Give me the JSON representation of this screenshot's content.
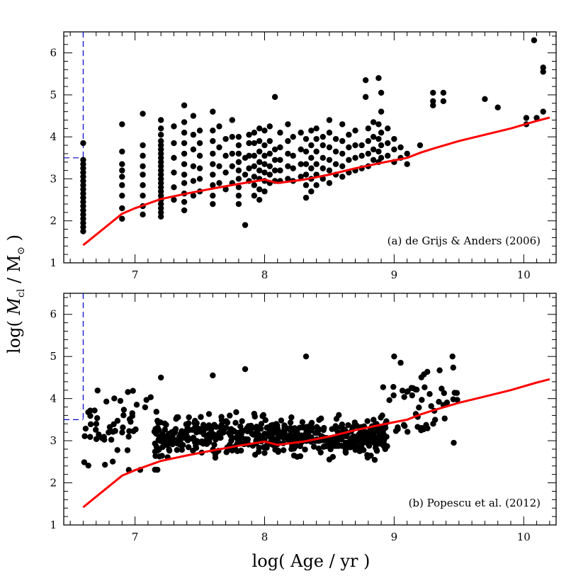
{
  "figure": {
    "ylabel_prefix": "log( ",
    "ylabel_var": "M",
    "ylabel_sub": "cl",
    "ylabel_mid": " / M",
    "ylabel_sun": "⊙",
    "ylabel_suffix": " )",
    "xlabel": "log( Age / yr )"
  },
  "chart_data": [
    {
      "type": "scatter",
      "annotation": "(a) de Grijs & Anders (2006)",
      "xlim": [
        6.45,
        10.25
      ],
      "ylim": [
        1,
        6.5
      ],
      "x_ticks": [
        7,
        8,
        9,
        10
      ],
      "y_ticks": [
        1,
        2,
        3,
        4,
        5,
        6
      ],
      "colors": {
        "points": "#000000",
        "limit_line": "#ff0000",
        "completeness": "#0000cc"
      },
      "limit_line": {
        "x": [
          6.6,
          6.9,
          7.0,
          7.2,
          7.4,
          7.6,
          7.8,
          8.0,
          8.1,
          8.3,
          8.5,
          8.7,
          8.9,
          9.1,
          9.2,
          9.3,
          9.5,
          9.7,
          9.9,
          10.1,
          10.2
        ],
        "y": [
          1.42,
          2.17,
          2.3,
          2.52,
          2.65,
          2.77,
          2.88,
          2.98,
          2.9,
          2.98,
          3.1,
          3.25,
          3.38,
          3.5,
          3.62,
          3.72,
          3.9,
          4.05,
          4.2,
          4.38,
          4.46
        ]
      },
      "completeness_limit": {
        "x": 6.6,
        "y": 3.5
      },
      "points": [
        [
          6.6,
          1.75
        ],
        [
          6.6,
          1.85
        ],
        [
          6.6,
          1.95
        ],
        [
          6.6,
          2.05
        ],
        [
          6.6,
          2.15
        ],
        [
          6.6,
          2.25
        ],
        [
          6.6,
          2.35
        ],
        [
          6.6,
          2.45
        ],
        [
          6.6,
          2.55
        ],
        [
          6.6,
          2.65
        ],
        [
          6.6,
          2.75
        ],
        [
          6.6,
          2.85
        ],
        [
          6.6,
          2.95
        ],
        [
          6.6,
          3.05
        ],
        [
          6.6,
          3.15
        ],
        [
          6.6,
          3.25
        ],
        [
          6.6,
          3.35
        ],
        [
          6.6,
          3.45
        ],
        [
          6.6,
          3.85
        ],
        [
          6.9,
          2.05
        ],
        [
          6.9,
          2.3
        ],
        [
          6.9,
          2.6
        ],
        [
          6.9,
          2.85
        ],
        [
          6.9,
          3.05
        ],
        [
          6.9,
          3.2
        ],
        [
          6.9,
          3.35
        ],
        [
          6.9,
          3.65
        ],
        [
          6.9,
          4.3
        ],
        [
          7.06,
          2.15
        ],
        [
          7.06,
          2.35
        ],
        [
          7.06,
          2.6
        ],
        [
          7.06,
          2.85
        ],
        [
          7.06,
          3.1
        ],
        [
          7.06,
          3.3
        ],
        [
          7.06,
          3.55
        ],
        [
          7.06,
          3.8
        ],
        [
          7.06,
          4.55
        ],
        [
          7.2,
          2.1
        ],
        [
          7.2,
          2.2
        ],
        [
          7.2,
          2.3
        ],
        [
          7.2,
          2.4
        ],
        [
          7.2,
          2.5
        ],
        [
          7.2,
          2.6
        ],
        [
          7.2,
          2.7
        ],
        [
          7.2,
          2.8
        ],
        [
          7.2,
          2.9
        ],
        [
          7.2,
          3.0
        ],
        [
          7.2,
          3.1
        ],
        [
          7.2,
          3.2
        ],
        [
          7.2,
          3.3
        ],
        [
          7.2,
          3.4
        ],
        [
          7.2,
          3.5
        ],
        [
          7.2,
          3.6
        ],
        [
          7.2,
          3.7
        ],
        [
          7.2,
          3.8
        ],
        [
          7.2,
          3.9
        ],
        [
          7.2,
          4.05
        ],
        [
          7.2,
          4.2
        ],
        [
          7.2,
          4.4
        ],
        [
          7.3,
          2.5
        ],
        [
          7.3,
          2.8
        ],
        [
          7.3,
          3.15
        ],
        [
          7.3,
          3.5
        ],
        [
          7.3,
          3.85
        ],
        [
          7.3,
          4.25
        ],
        [
          7.38,
          2.25
        ],
        [
          7.38,
          2.45
        ],
        [
          7.38,
          2.65
        ],
        [
          7.38,
          2.9
        ],
        [
          7.38,
          3.1
        ],
        [
          7.38,
          3.35
        ],
        [
          7.38,
          3.6
        ],
        [
          7.38,
          3.85
        ],
        [
          7.38,
          4.1
        ],
        [
          7.38,
          4.35
        ],
        [
          7.38,
          4.75
        ],
        [
          7.45,
          2.6
        ],
        [
          7.45,
          2.95
        ],
        [
          7.45,
          3.3
        ],
        [
          7.45,
          3.7
        ],
        [
          7.45,
          4.05
        ],
        [
          7.45,
          4.5
        ],
        [
          7.5,
          2.7
        ],
        [
          7.5,
          3.0
        ],
        [
          7.5,
          3.25
        ],
        [
          7.5,
          3.55
        ],
        [
          7.5,
          3.85
        ],
        [
          7.5,
          4.15
        ],
        [
          7.6,
          2.4
        ],
        [
          7.6,
          2.6
        ],
        [
          7.6,
          2.85
        ],
        [
          7.6,
          3.1
        ],
        [
          7.6,
          3.35
        ],
        [
          7.6,
          3.6
        ],
        [
          7.6,
          3.9
        ],
        [
          7.6,
          4.15
        ],
        [
          7.6,
          4.6
        ],
        [
          7.65,
          2.9
        ],
        [
          7.65,
          3.3
        ],
        [
          7.65,
          3.75
        ],
        [
          7.65,
          4.25
        ],
        [
          7.7,
          2.75
        ],
        [
          7.7,
          3.15
        ],
        [
          7.7,
          3.55
        ],
        [
          7.7,
          3.95
        ],
        [
          7.75,
          2.9
        ],
        [
          7.75,
          3.3
        ],
        [
          7.75,
          3.6
        ],
        [
          7.75,
          4.0
        ],
        [
          7.75,
          4.4
        ],
        [
          7.8,
          2.4
        ],
        [
          7.8,
          2.6
        ],
        [
          7.8,
          2.8
        ],
        [
          7.8,
          3.0
        ],
        [
          7.8,
          3.2
        ],
        [
          7.8,
          3.4
        ],
        [
          7.8,
          3.6
        ],
        [
          7.8,
          3.8
        ],
        [
          7.8,
          4.0
        ],
        [
          7.85,
          1.9
        ],
        [
          7.85,
          3.1
        ],
        [
          7.85,
          3.5
        ],
        [
          7.88,
          2.95
        ],
        [
          7.88,
          3.25
        ],
        [
          7.88,
          3.55
        ],
        [
          7.88,
          3.85
        ],
        [
          7.88,
          4.05
        ],
        [
          7.92,
          2.6
        ],
        [
          7.92,
          2.85
        ],
        [
          7.92,
          3.05
        ],
        [
          7.92,
          3.3
        ],
        [
          7.92,
          3.55
        ],
        [
          7.92,
          3.85
        ],
        [
          7.92,
          4.1
        ],
        [
          7.96,
          2.5
        ],
        [
          7.96,
          2.75
        ],
        [
          7.96,
          3.0
        ],
        [
          7.96,
          3.2
        ],
        [
          7.96,
          3.4
        ],
        [
          7.96,
          3.65
        ],
        [
          7.96,
          3.9
        ],
        [
          7.96,
          4.2
        ],
        [
          8.0,
          2.7
        ],
        [
          8.0,
          2.95
        ],
        [
          8.0,
          3.15
        ],
        [
          8.0,
          3.35
        ],
        [
          8.0,
          3.55
        ],
        [
          8.0,
          3.8
        ],
        [
          8.0,
          4.15
        ],
        [
          8.04,
          2.9
        ],
        [
          8.04,
          3.1
        ],
        [
          8.04,
          3.3
        ],
        [
          8.04,
          3.6
        ],
        [
          8.04,
          3.9
        ],
        [
          8.04,
          4.25
        ],
        [
          8.08,
          2.95
        ],
        [
          8.08,
          3.2
        ],
        [
          8.08,
          3.45
        ],
        [
          8.08,
          3.7
        ],
        [
          8.08,
          4.95
        ],
        [
          8.12,
          2.95
        ],
        [
          8.12,
          3.2
        ],
        [
          8.12,
          3.45
        ],
        [
          8.12,
          3.75
        ],
        [
          8.12,
          4.1
        ],
        [
          8.18,
          3.0
        ],
        [
          8.18,
          3.3
        ],
        [
          8.18,
          3.6
        ],
        [
          8.18,
          3.9
        ],
        [
          8.18,
          4.3
        ],
        [
          8.22,
          2.95
        ],
        [
          8.22,
          3.25
        ],
        [
          8.22,
          3.55
        ],
        [
          8.22,
          4.0
        ],
        [
          8.28,
          3.05
        ],
        [
          8.28,
          3.35
        ],
        [
          8.28,
          3.7
        ],
        [
          8.28,
          4.1
        ],
        [
          8.32,
          2.55
        ],
        [
          8.32,
          2.85
        ],
        [
          8.32,
          3.1
        ],
        [
          8.32,
          3.35
        ],
        [
          8.32,
          3.65
        ],
        [
          8.32,
          3.95
        ],
        [
          8.36,
          2.7
        ],
        [
          8.36,
          3.0
        ],
        [
          8.36,
          3.25
        ],
        [
          8.36,
          3.5
        ],
        [
          8.36,
          3.8
        ],
        [
          8.36,
          4.15
        ],
        [
          8.4,
          2.85
        ],
        [
          8.4,
          3.1
        ],
        [
          8.4,
          3.35
        ],
        [
          8.4,
          3.65
        ],
        [
          8.4,
          3.95
        ],
        [
          8.4,
          4.2
        ],
        [
          8.45,
          3.0
        ],
        [
          8.45,
          3.25
        ],
        [
          8.45,
          3.5
        ],
        [
          8.45,
          3.8
        ],
        [
          8.45,
          4.0
        ],
        [
          8.5,
          2.9
        ],
        [
          8.5,
          3.2
        ],
        [
          8.5,
          3.45
        ],
        [
          8.5,
          3.75
        ],
        [
          8.5,
          4.1
        ],
        [
          8.5,
          4.4
        ],
        [
          8.55,
          3.1
        ],
        [
          8.55,
          3.35
        ],
        [
          8.55,
          3.65
        ],
        [
          8.55,
          3.95
        ],
        [
          8.6,
          3.05
        ],
        [
          8.6,
          3.3
        ],
        [
          8.6,
          3.6
        ],
        [
          8.6,
          3.9
        ],
        [
          8.6,
          4.3
        ],
        [
          8.65,
          3.15
        ],
        [
          8.65,
          3.45
        ],
        [
          8.65,
          3.75
        ],
        [
          8.65,
          4.05
        ],
        [
          8.7,
          3.2
        ],
        [
          8.7,
          3.5
        ],
        [
          8.7,
          3.8
        ],
        [
          8.7,
          4.15
        ],
        [
          8.75,
          3.25
        ],
        [
          8.75,
          3.55
        ],
        [
          8.75,
          3.8
        ],
        [
          8.78,
          4.95
        ],
        [
          8.78,
          5.35
        ],
        [
          8.8,
          3.3
        ],
        [
          8.8,
          3.6
        ],
        [
          8.8,
          3.9
        ],
        [
          8.8,
          4.2
        ],
        [
          8.84,
          3.45
        ],
        [
          8.84,
          3.7
        ],
        [
          8.84,
          4.0
        ],
        [
          8.84,
          4.35
        ],
        [
          8.88,
          3.4
        ],
        [
          8.88,
          3.65
        ],
        [
          8.88,
          3.95
        ],
        [
          8.88,
          4.3
        ],
        [
          8.88,
          5.4
        ],
        [
          8.9,
          3.5
        ],
        [
          8.9,
          3.8
        ],
        [
          8.9,
          4.1
        ],
        [
          8.9,
          4.6
        ],
        [
          8.9,
          5.05
        ],
        [
          8.95,
          3.55
        ],
        [
          8.95,
          3.85
        ],
        [
          8.95,
          4.2
        ],
        [
          9.0,
          3.4
        ],
        [
          9.0,
          3.7
        ],
        [
          9.0,
          3.95
        ],
        [
          9.05,
          3.5
        ],
        [
          9.05,
          3.75
        ],
        [
          9.1,
          3.6
        ],
        [
          9.1,
          3.35
        ],
        [
          9.2,
          3.8
        ],
        [
          9.3,
          4.75
        ],
        [
          9.3,
          4.85
        ],
        [
          9.3,
          5.05
        ],
        [
          9.38,
          4.85
        ],
        [
          9.38,
          5.05
        ],
        [
          9.7,
          4.9
        ],
        [
          9.8,
          4.7
        ],
        [
          10.02,
          4.3
        ],
        [
          10.02,
          4.45
        ],
        [
          10.1,
          4.45
        ],
        [
          10.08,
          6.3
        ],
        [
          10.15,
          4.6
        ],
        [
          10.15,
          5.55
        ],
        [
          10.15,
          5.65
        ]
      ]
    },
    {
      "type": "scatter",
      "annotation": "(b) Popescu et al. (2012)",
      "xlim": [
        6.45,
        10.25
      ],
      "ylim": [
        1,
        6.5
      ],
      "x_ticks": [
        7,
        8,
        9,
        10
      ],
      "y_ticks": [
        1,
        2,
        3,
        4,
        5,
        6
      ],
      "colors": {
        "points": "#000000",
        "limit_line": "#ff0000",
        "completeness": "#0000cc"
      },
      "limit_line": {
        "x": [
          6.6,
          6.9,
          7.0,
          7.2,
          7.4,
          7.6,
          7.8,
          8.0,
          8.1,
          8.3,
          8.5,
          8.7,
          8.9,
          9.1,
          9.2,
          9.3,
          9.5,
          9.7,
          9.9,
          10.1,
          10.2
        ],
        "y": [
          1.42,
          2.17,
          2.3,
          2.52,
          2.65,
          2.77,
          2.88,
          2.98,
          2.9,
          2.98,
          3.1,
          3.25,
          3.38,
          3.5,
          3.62,
          3.72,
          3.9,
          4.05,
          4.2,
          4.38,
          4.46
        ]
      },
      "completeness_limit": {
        "x": 6.6,
        "y": 3.5
      },
      "points": []
    }
  ]
}
